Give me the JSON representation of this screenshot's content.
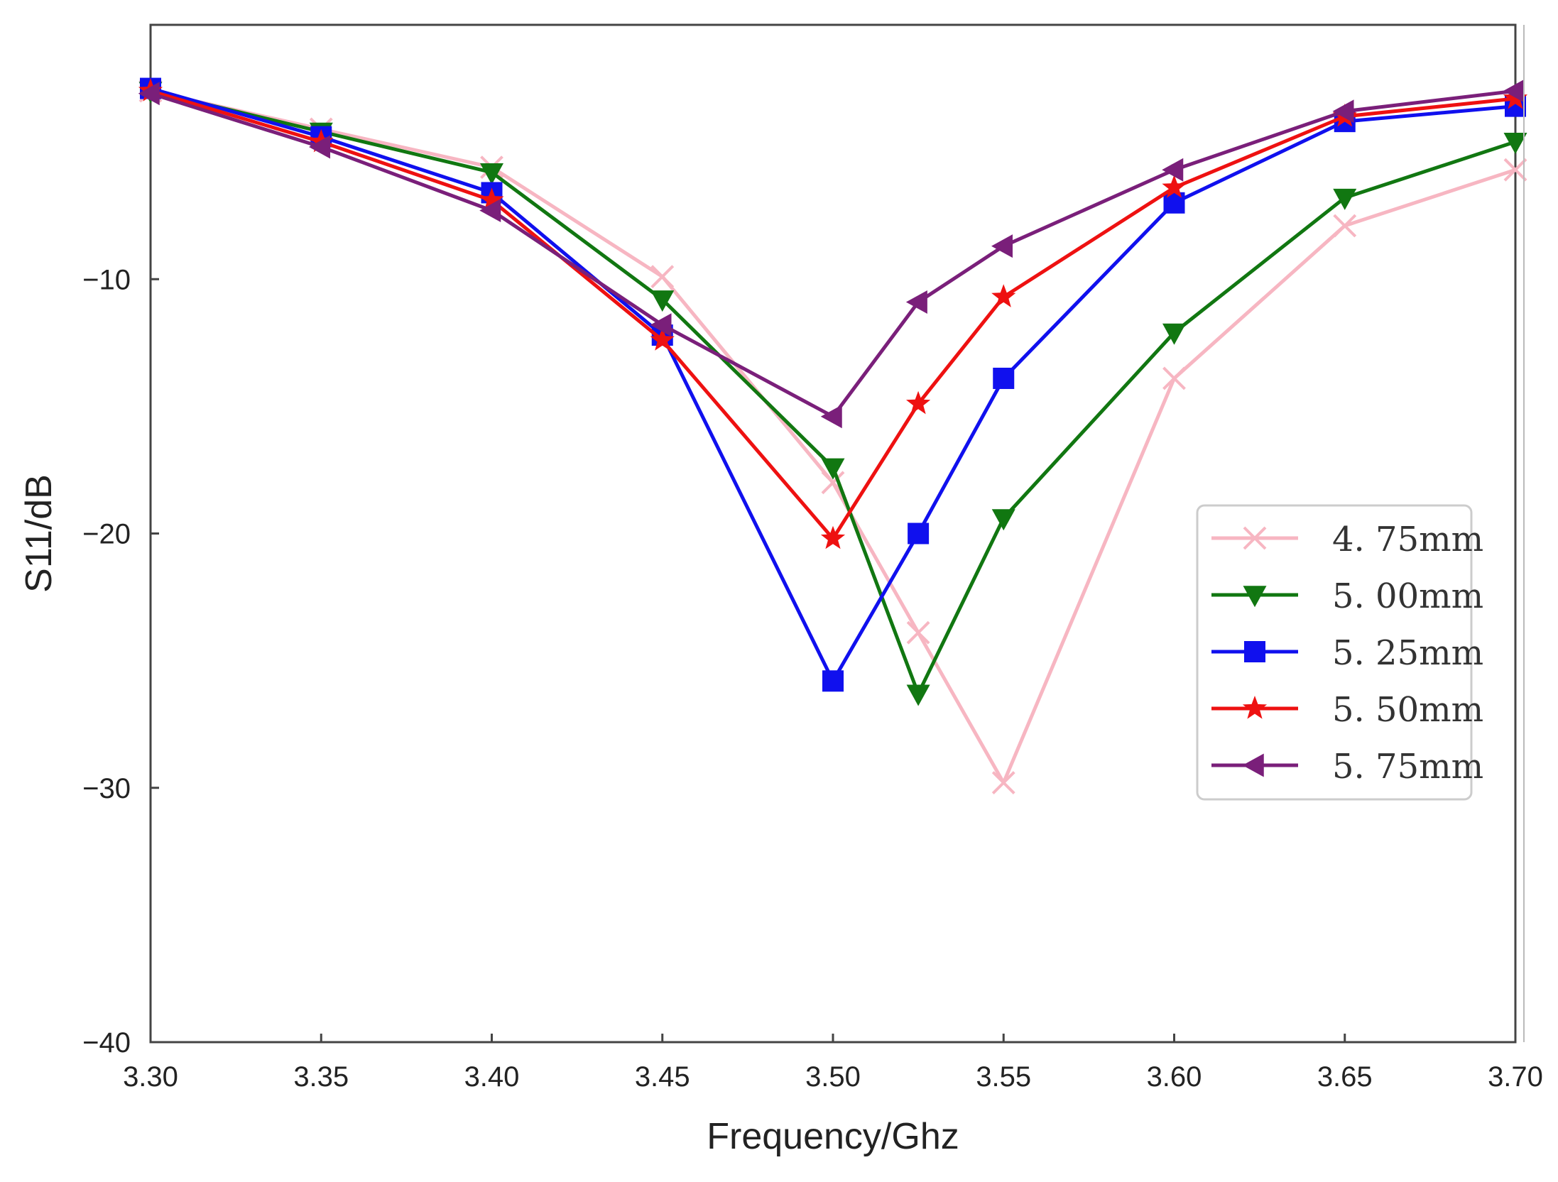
{
  "chart_data": {
    "type": "line",
    "title": "",
    "xlabel": "Frequency/Ghz",
    "ylabel": "S11/dB",
    "xlim": [
      3.3,
      3.7
    ],
    "ylim": [
      -40,
      0
    ],
    "grid": false,
    "legend_position": "right",
    "x_ticks": [
      3.3,
      3.35,
      3.4,
      3.45,
      3.5,
      3.55,
      3.6,
      3.65,
      3.7
    ],
    "x_tick_labels": [
      "3.30",
      "3.35",
      "3.40",
      "3.45",
      "3.50",
      "3.55",
      "3.60",
      "3.65",
      "3.70"
    ],
    "y_ticks": [
      -10,
      -20,
      -30,
      -40
    ],
    "y_tick_labels": [
      "−10",
      "−20",
      "−30",
      "−40"
    ],
    "x": [
      3.3,
      3.35,
      3.4,
      3.45,
      3.5,
      3.525,
      3.55,
      3.6,
      3.65,
      3.7
    ],
    "series": [
      {
        "name": "4. 75mm",
        "color": "#f7b6c2",
        "marker": "x",
        "values": [
          -2.6,
          -4.1,
          -5.6,
          -9.9,
          -18.0,
          -23.9,
          -29.8,
          -13.9,
          -7.9,
          -5.7
        ]
      },
      {
        "name": "5. 00mm",
        "color": "#117711",
        "marker": "triangle-down",
        "values": [
          -2.6,
          -4.2,
          -5.8,
          -10.8,
          -17.4,
          -26.3,
          -19.4,
          -12.1,
          -6.8,
          -4.6
        ]
      },
      {
        "name": "5. 25mm",
        "color": "#1010ee",
        "marker": "square",
        "values": [
          -2.5,
          -4.4,
          -6.6,
          -12.2,
          -25.8,
          -20.0,
          -13.9,
          -7.0,
          -3.8,
          -3.2
        ]
      },
      {
        "name": "5. 50mm",
        "color": "#ee1111",
        "marker": "star",
        "values": [
          -2.6,
          -4.6,
          -6.9,
          -12.4,
          -20.2,
          -14.9,
          -10.7,
          -6.4,
          -3.6,
          -2.9
        ]
      },
      {
        "name": "5. 75mm",
        "color": "#7a1f7a",
        "marker": "triangle-left",
        "values": [
          -2.7,
          -4.8,
          -7.3,
          -11.8,
          -15.4,
          -10.9,
          -8.7,
          -5.7,
          -3.4,
          -2.6
        ]
      }
    ]
  }
}
